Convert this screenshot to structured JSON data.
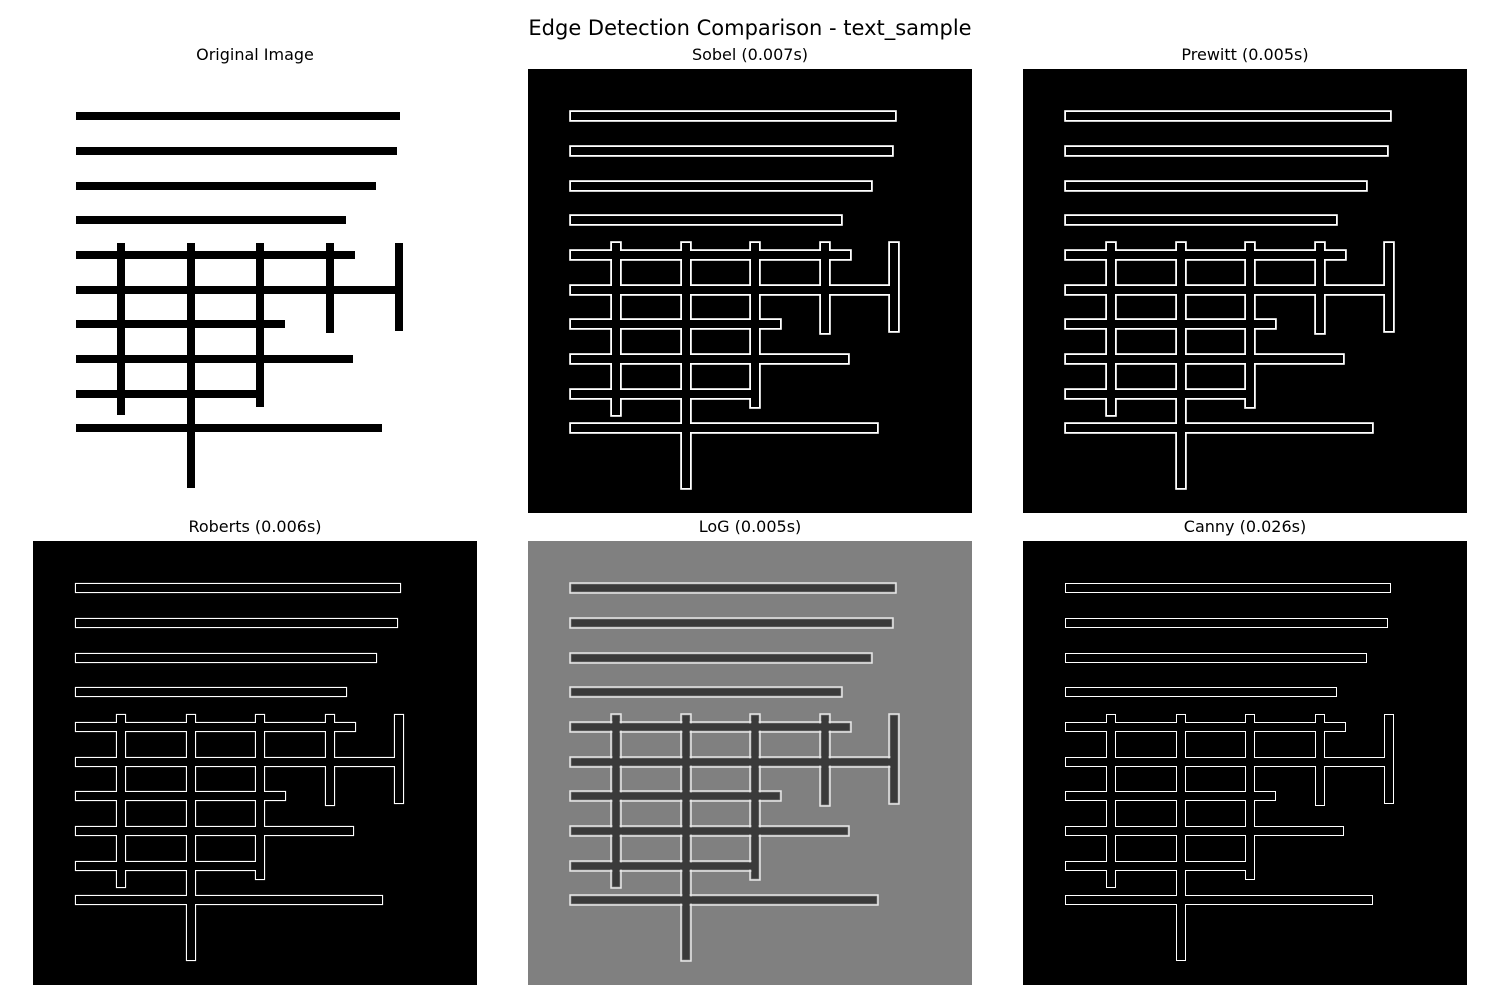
{
  "figure": {
    "title": "Edge Detection Comparison - text_sample"
  },
  "panels": [
    {
      "id": "original",
      "title": "Original Image",
      "style": "original"
    },
    {
      "id": "sobel",
      "title": "Sobel (0.007s)",
      "style": "sobel"
    },
    {
      "id": "prewitt",
      "title": "Prewitt (0.005s)",
      "style": "prewitt"
    },
    {
      "id": "roberts",
      "title": "Roberts (0.006s)",
      "style": "roberts"
    },
    {
      "id": "log",
      "title": "LoG (0.005s)",
      "style": "log"
    },
    {
      "id": "canny",
      "title": "Canny (0.026s)",
      "style": "canny"
    }
  ],
  "colors": {
    "edge_background": "#000000",
    "edge_line": "#ffffff",
    "original_background": "#ffffff",
    "original_ink": "#000000",
    "log_background": "#808080",
    "log_light": "#e8e8e8",
    "log_dark": "#3a3a3a"
  }
}
